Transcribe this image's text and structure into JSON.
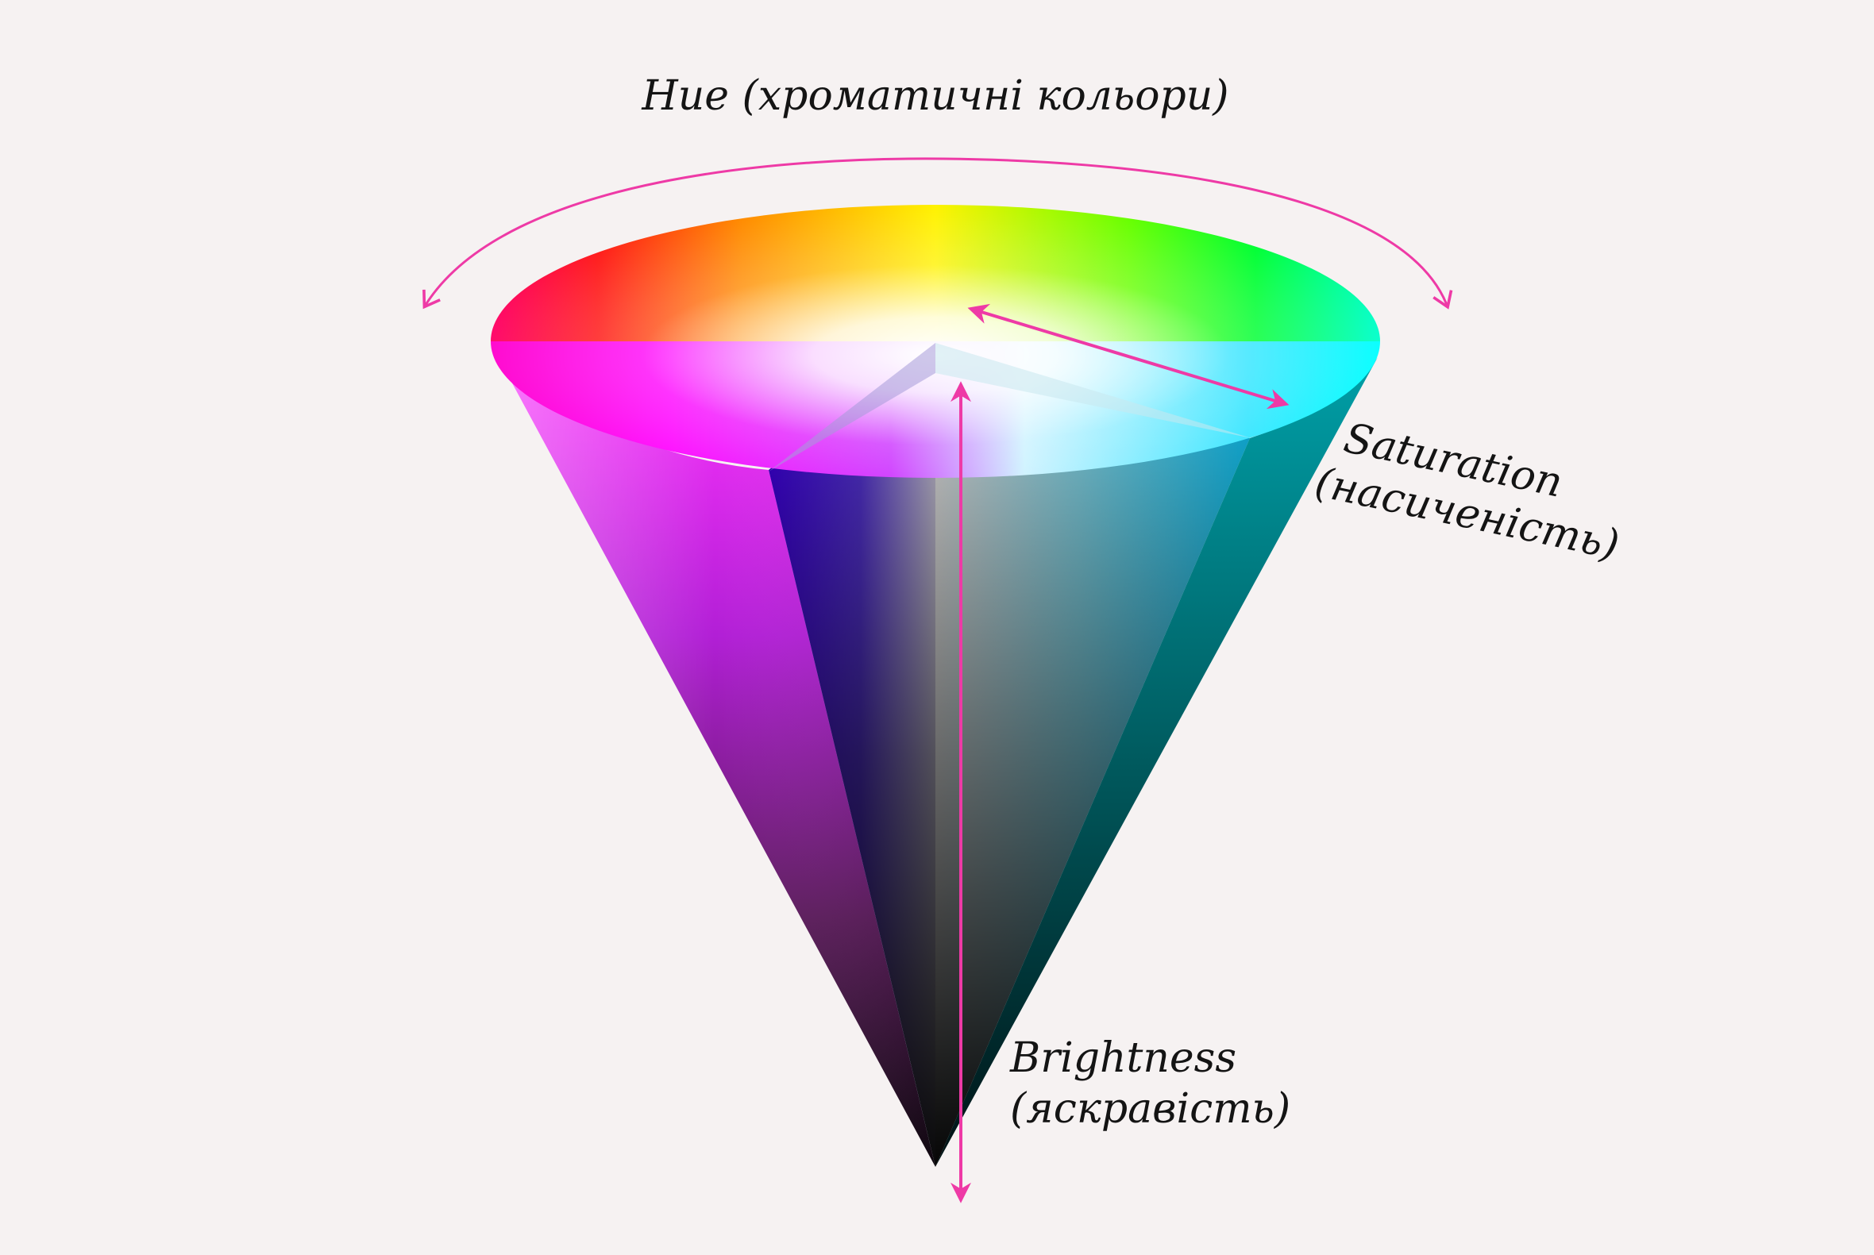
{
  "labels": {
    "hue": "Hue (хроматичні кольори)",
    "saturation_line1": "Saturation",
    "saturation_line2": "(насиченість)",
    "brightness_line1": "Brightness",
    "brightness_line2": "(яскравість)"
  },
  "colors": {
    "background": "#f6f2f2",
    "arrow": "#ee3aa6",
    "text": "#141414",
    "apex": "#000000"
  }
}
